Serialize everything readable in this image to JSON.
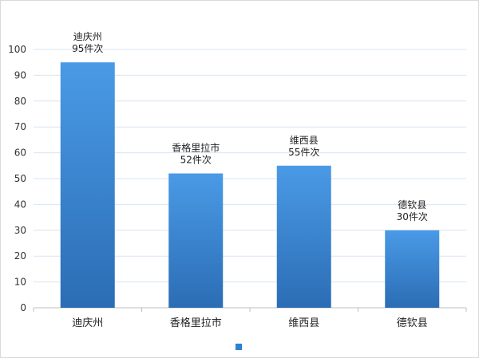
{
  "chart_data": {
    "type": "bar",
    "categories": [
      "迪庆州",
      "香格里拉市",
      "维西县",
      "德钦县"
    ],
    "values": [
      95,
      52,
      55,
      30
    ],
    "data_labels": [
      [
        "迪庆州",
        "95件次"
      ],
      [
        "香格里拉市",
        "52件次"
      ],
      [
        "维西县",
        "55件次"
      ],
      [
        "德钦县",
        "30件次"
      ]
    ],
    "yticks": [
      "0",
      "10",
      "20",
      "30",
      "40",
      "50",
      "60",
      "70",
      "80",
      "90",
      "100"
    ],
    "ylim": [
      0,
      100
    ],
    "grid": true,
    "legend": "bottom-center",
    "colors": {
      "bar_top": "#4a9ae6",
      "bar_bottom": "#2b6db5",
      "grid": "#d9e4f0",
      "axis": "#bfbfbf",
      "legend_marker": "#2f80d0"
    }
  }
}
